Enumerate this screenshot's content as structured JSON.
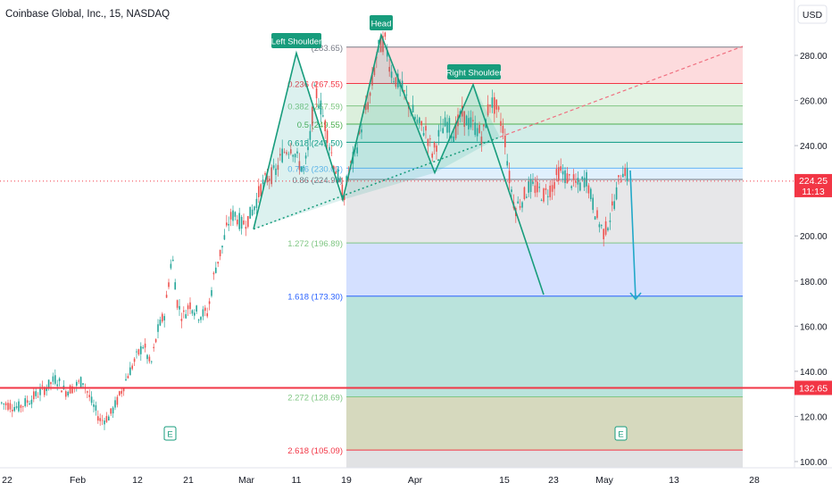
{
  "header": {
    "title": "Coinbase Global, Inc., 15, NASDAQ",
    "currency": "USD"
  },
  "colors": {
    "up": "#26a69a",
    "down": "#ef5350",
    "pattern": "#179c7c",
    "horizontal": "#f23645",
    "projection": "#22a8c8",
    "axis_text": "#131722",
    "price_badge": "#f23645"
  },
  "chart_data": {
    "type": "candlestick",
    "title": "Coinbase Global, Inc., 15, NASDAQ",
    "yaxis": {
      "range": [
        98,
        294
      ],
      "ticks": [
        100,
        120,
        140,
        160,
        180,
        200,
        220,
        240,
        260,
        280
      ],
      "tick_labels": [
        "100.00",
        "120.00",
        "140.00",
        "160.00",
        "180.00",
        "200.00",
        "220.00",
        "240.00",
        "260.00",
        "280.00"
      ]
    },
    "xaxis": {
      "tick_labels": [
        "22",
        "Feb",
        "12",
        "21",
        "Mar",
        "11",
        "19",
        "Apr",
        "15",
        "23",
        "May",
        "13",
        "28"
      ]
    },
    "current_price": {
      "value": 224.25,
      "label": "224.25",
      "countdown": "11:13"
    },
    "horizontal_line": {
      "value": 132.65,
      "label": "132.65"
    },
    "fibonacci": {
      "levels": [
        {
          "ratio": "1",
          "price": 283.65,
          "label": "(283.65)",
          "color": "#787b86"
        },
        {
          "ratio": "0.236",
          "price": 267.55,
          "label": "0.236 (267.55)",
          "color": "#f23645"
        },
        {
          "ratio": "0.382",
          "price": 257.59,
          "label": "0.382 (257.59)",
          "color": "#81c784"
        },
        {
          "ratio": "0.5",
          "price": 249.55,
          "label": "0.5 (249.55)",
          "color": "#4caf50"
        },
        {
          "ratio": "0.618",
          "price": 241.5,
          "label": "0.618 (241.50)",
          "color": "#089981"
        },
        {
          "ratio": "0.786",
          "price": 230.03,
          "label": "0.786 (230.03)",
          "color": "#64b5f6"
        },
        {
          "ratio": "0.86",
          "price": 224.99,
          "label": "0.86 (224.99)",
          "color": "#787b86"
        },
        {
          "ratio": "1.272",
          "price": 196.89,
          "label": "1.272 (196.89)",
          "color": "#81c784"
        },
        {
          "ratio": "1.618",
          "price": 173.3,
          "label": "1.618 (173.30)",
          "color": "#2962ff"
        },
        {
          "ratio": "2.272",
          "price": 128.69,
          "label": "2.272 (128.69)",
          "color": "#81c784"
        },
        {
          "ratio": "2.618",
          "price": 105.09,
          "label": "2.618 (105.09)",
          "color": "#f23645"
        }
      ]
    },
    "pattern_labels": [
      "Left Shoulder",
      "Head",
      "Right Shoulder"
    ],
    "pattern_points": [
      {
        "slot": 0,
        "price": 203
      },
      {
        "slot": 1,
        "price": 281
      },
      {
        "slot": 2,
        "price": 216
      },
      {
        "slot": 3,
        "price": 289
      },
      {
        "slot": 4,
        "price": 228
      },
      {
        "slot": 5,
        "price": 267
      },
      {
        "slot": 6,
        "price": 174
      }
    ],
    "neckline": {
      "price_start": 203,
      "price_end": 284
    },
    "projection_arrow": {
      "from_price": 229,
      "to_price": 172
    },
    "earnings_markers": [
      "E",
      "E"
    ],
    "price_path": [
      [
        0,
        126
      ],
      [
        20,
        124
      ],
      [
        35,
        128
      ],
      [
        52,
        133
      ],
      [
        62,
        137
      ],
      [
        72,
        131
      ],
      [
        82,
        133
      ],
      [
        92,
        136
      ],
      [
        102,
        126
      ],
      [
        112,
        118
      ],
      [
        122,
        120
      ],
      [
        132,
        128
      ],
      [
        142,
        138
      ],
      [
        152,
        146
      ],
      [
        160,
        152
      ],
      [
        168,
        142
      ],
      [
        176,
        158
      ],
      [
        184,
        166
      ],
      [
        192,
        192
      ],
      [
        198,
        170
      ],
      [
        204,
        164
      ],
      [
        212,
        170
      ],
      [
        222,
        165
      ],
      [
        232,
        166
      ],
      [
        240,
        185
      ],
      [
        248,
        195
      ],
      [
        256,
        207
      ],
      [
        262,
        210
      ],
      [
        270,
        205
      ],
      [
        278,
        208
      ],
      [
        284,
        213
      ],
      [
        292,
        222
      ],
      [
        300,
        226
      ],
      [
        308,
        228
      ],
      [
        316,
        237
      ],
      [
        326,
        240
      ],
      [
        333,
        233
      ],
      [
        340,
        229
      ],
      [
        346,
        241
      ],
      [
        352,
        265
      ],
      [
        358,
        258
      ],
      [
        366,
        245
      ],
      [
        372,
        234
      ],
      [
        380,
        223
      ],
      [
        384,
        217
      ],
      [
        390,
        228
      ],
      [
        398,
        238
      ],
      [
        406,
        252
      ],
      [
        414,
        262
      ],
      [
        422,
        282
      ],
      [
        430,
        287
      ],
      [
        438,
        272
      ],
      [
        448,
        266
      ],
      [
        458,
        258
      ],
      [
        468,
        249
      ],
      [
        476,
        247
      ],
      [
        484,
        236
      ],
      [
        492,
        246
      ],
      [
        500,
        250
      ],
      [
        508,
        245
      ],
      [
        516,
        254
      ],
      [
        524,
        250
      ],
      [
        532,
        248
      ],
      [
        540,
        244
      ],
      [
        548,
        260
      ],
      [
        556,
        256
      ],
      [
        564,
        246
      ],
      [
        570,
        225
      ],
      [
        576,
        212
      ],
      [
        584,
        216
      ],
      [
        592,
        222
      ],
      [
        600,
        221
      ],
      [
        608,
        218
      ],
      [
        618,
        222
      ],
      [
        626,
        229
      ],
      [
        634,
        226
      ],
      [
        640,
        224
      ],
      [
        648,
        222
      ],
      [
        656,
        226
      ],
      [
        662,
        216
      ],
      [
        668,
        208
      ],
      [
        676,
        201
      ],
      [
        684,
        210
      ],
      [
        692,
        223
      ],
      [
        698,
        231
      ],
      [
        704,
        224
      ]
    ]
  }
}
